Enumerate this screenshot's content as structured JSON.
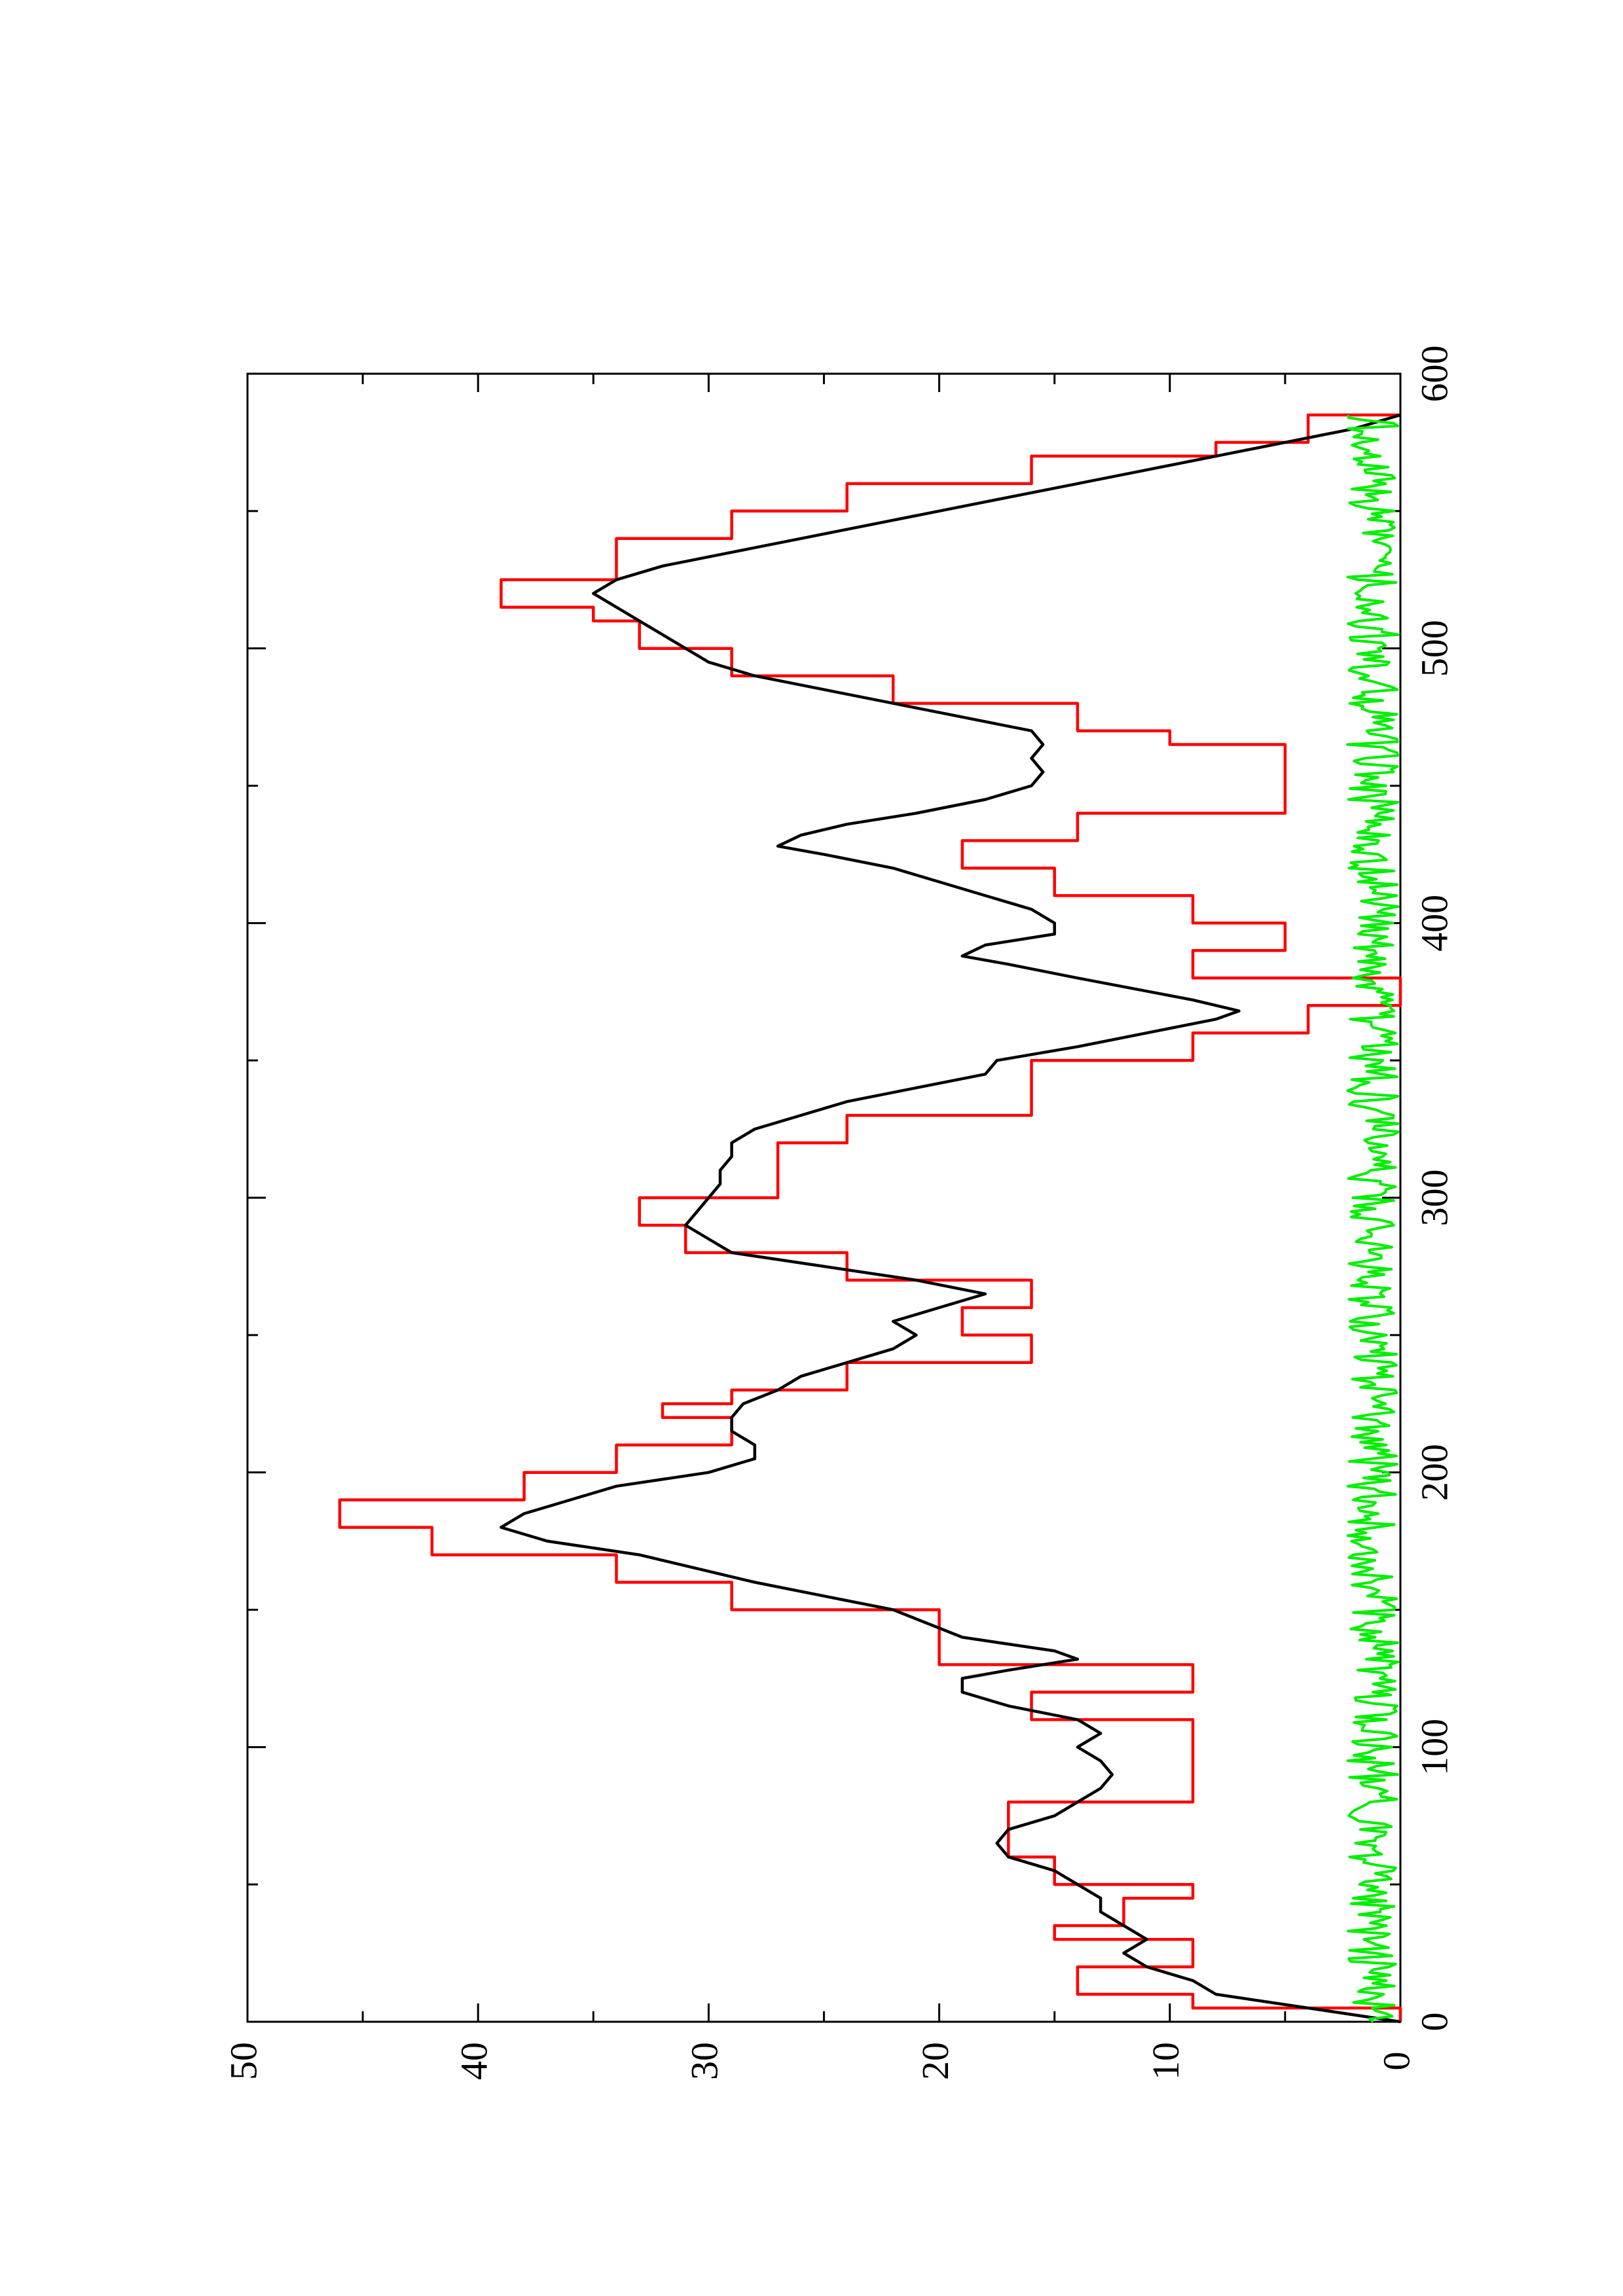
{
  "chart_data": {
    "type": "line",
    "orientation": "rotated-90-ccw",
    "xlim": [
      0,
      600
    ],
    "ylim": [
      0,
      50
    ],
    "x_ticks": [
      0,
      100,
      200,
      300,
      400,
      500,
      600
    ],
    "y_ticks": [
      0,
      10,
      20,
      30,
      40,
      50
    ],
    "title": "",
    "xlabel": "",
    "ylabel": "",
    "grid": false,
    "series": [
      {
        "color": "#ff0000",
        "style": "step",
        "points": [
          [
            0,
            0
          ],
          [
            5,
            0
          ],
          [
            5,
            9
          ],
          [
            10,
            9
          ],
          [
            10,
            14
          ],
          [
            20,
            14
          ],
          [
            20,
            9
          ],
          [
            30,
            9
          ],
          [
            30,
            15
          ],
          [
            35,
            15
          ],
          [
            35,
            12
          ],
          [
            45,
            12
          ],
          [
            45,
            9
          ],
          [
            50,
            9
          ],
          [
            50,
            15
          ],
          [
            60,
            15
          ],
          [
            60,
            17
          ],
          [
            80,
            17
          ],
          [
            80,
            9
          ],
          [
            110,
            9
          ],
          [
            110,
            16
          ],
          [
            120,
            16
          ],
          [
            120,
            9
          ],
          [
            130,
            9
          ],
          [
            130,
            20
          ],
          [
            150,
            20
          ],
          [
            150,
            29
          ],
          [
            160,
            29
          ],
          [
            160,
            34
          ],
          [
            170,
            34
          ],
          [
            170,
            42
          ],
          [
            180,
            42
          ],
          [
            180,
            46
          ],
          [
            190,
            46
          ],
          [
            190,
            38
          ],
          [
            200,
            38
          ],
          [
            200,
            34
          ],
          [
            210,
            34
          ],
          [
            210,
            29
          ],
          [
            220,
            29
          ],
          [
            220,
            32
          ],
          [
            225,
            32
          ],
          [
            225,
            29
          ],
          [
            230,
            29
          ],
          [
            230,
            24
          ],
          [
            240,
            24
          ],
          [
            240,
            16
          ],
          [
            250,
            16
          ],
          [
            250,
            19
          ],
          [
            260,
            19
          ],
          [
            260,
            16
          ],
          [
            270,
            16
          ],
          [
            270,
            24
          ],
          [
            280,
            24
          ],
          [
            280,
            31
          ],
          [
            290,
            31
          ],
          [
            290,
            33
          ],
          [
            300,
            33
          ],
          [
            300,
            27
          ],
          [
            320,
            27
          ],
          [
            320,
            24
          ],
          [
            330,
            24
          ],
          [
            330,
            16
          ],
          [
            350,
            16
          ],
          [
            350,
            9
          ],
          [
            360,
            9
          ],
          [
            360,
            4
          ],
          [
            370,
            4
          ],
          [
            370,
            0
          ],
          [
            380,
            0
          ],
          [
            380,
            9
          ],
          [
            390,
            9
          ],
          [
            390,
            5
          ],
          [
            400,
            5
          ],
          [
            400,
            9
          ],
          [
            410,
            9
          ],
          [
            410,
            15
          ],
          [
            420,
            15
          ],
          [
            420,
            19
          ],
          [
            430,
            19
          ],
          [
            430,
            14
          ],
          [
            440,
            14
          ],
          [
            440,
            5
          ],
          [
            465,
            5
          ],
          [
            465,
            10
          ],
          [
            470,
            10
          ],
          [
            470,
            14
          ],
          [
            480,
            14
          ],
          [
            480,
            22
          ],
          [
            490,
            22
          ],
          [
            490,
            29
          ],
          [
            500,
            29
          ],
          [
            500,
            33
          ],
          [
            510,
            33
          ],
          [
            510,
            35
          ],
          [
            515,
            35
          ],
          [
            515,
            39
          ],
          [
            525,
            39
          ],
          [
            525,
            34
          ],
          [
            540,
            34
          ],
          [
            540,
            29
          ],
          [
            550,
            29
          ],
          [
            550,
            24
          ],
          [
            560,
            24
          ],
          [
            560,
            16
          ],
          [
            570,
            16
          ],
          [
            570,
            8
          ],
          [
            575,
            8
          ],
          [
            575,
            4
          ],
          [
            585,
            4
          ],
          [
            585,
            0
          ]
        ]
      },
      {
        "color": "#000000",
        "style": "line",
        "points": [
          [
            0,
            0
          ],
          [
            5,
            4
          ],
          [
            10,
            8
          ],
          [
            15,
            9
          ],
          [
            20,
            11
          ],
          [
            25,
            12
          ],
          [
            30,
            11
          ],
          [
            35,
            12
          ],
          [
            40,
            13
          ],
          [
            45,
            13
          ],
          [
            50,
            14
          ],
          [
            55,
            15
          ],
          [
            60,
            17
          ],
          [
            65,
            17.5
          ],
          [
            70,
            17
          ],
          [
            75,
            15
          ],
          [
            80,
            14
          ],
          [
            85,
            13
          ],
          [
            90,
            12.5
          ],
          [
            95,
            13
          ],
          [
            100,
            14
          ],
          [
            105,
            13
          ],
          [
            110,
            14
          ],
          [
            115,
            17
          ],
          [
            120,
            19
          ],
          [
            125,
            19
          ],
          [
            128,
            17
          ],
          [
            132,
            14
          ],
          [
            135,
            15
          ],
          [
            140,
            19
          ],
          [
            150,
            22
          ],
          [
            160,
            28
          ],
          [
            170,
            33
          ],
          [
            175,
            37
          ],
          [
            180,
            39
          ],
          [
            185,
            38
          ],
          [
            190,
            36
          ],
          [
            195,
            34
          ],
          [
            200,
            30
          ],
          [
            205,
            28
          ],
          [
            210,
            28
          ],
          [
            215,
            29
          ],
          [
            220,
            29
          ],
          [
            225,
            28.5
          ],
          [
            230,
            27
          ],
          [
            235,
            26
          ],
          [
            240,
            24
          ],
          [
            245,
            22
          ],
          [
            250,
            21
          ],
          [
            255,
            22
          ],
          [
            260,
            20
          ],
          [
            265,
            18
          ],
          [
            270,
            21
          ],
          [
            275,
            25
          ],
          [
            280,
            29
          ],
          [
            285,
            30
          ],
          [
            290,
            31
          ],
          [
            295,
            30.5
          ],
          [
            300,
            30
          ],
          [
            305,
            29.5
          ],
          [
            310,
            29.5
          ],
          [
            315,
            29
          ],
          [
            320,
            29
          ],
          [
            325,
            28
          ],
          [
            330,
            26
          ],
          [
            335,
            24
          ],
          [
            340,
            21
          ],
          [
            345,
            18
          ],
          [
            350,
            17.5
          ],
          [
            355,
            14
          ],
          [
            360,
            11
          ],
          [
            365,
            8
          ],
          [
            368,
            7
          ],
          [
            372,
            9
          ],
          [
            380,
            14
          ],
          [
            385,
            17
          ],
          [
            388,
            19
          ],
          [
            392,
            18
          ],
          [
            396,
            15
          ],
          [
            400,
            15
          ],
          [
            405,
            16
          ],
          [
            410,
            18
          ],
          [
            415,
            20
          ],
          [
            420,
            22
          ],
          [
            425,
            25
          ],
          [
            428,
            27
          ],
          [
            432,
            26
          ],
          [
            436,
            24
          ],
          [
            440,
            21
          ],
          [
            445,
            18
          ],
          [
            450,
            16
          ],
          [
            455,
            15.5
          ],
          [
            460,
            16
          ],
          [
            465,
            15.5
          ],
          [
            470,
            16
          ],
          [
            475,
            19
          ],
          [
            480,
            22
          ],
          [
            485,
            25
          ],
          [
            490,
            28
          ],
          [
            495,
            30
          ],
          [
            500,
            31
          ],
          [
            505,
            32
          ],
          [
            510,
            33
          ],
          [
            515,
            34
          ],
          [
            520,
            35
          ],
          [
            525,
            34
          ],
          [
            530,
            32
          ],
          [
            535,
            29
          ],
          [
            540,
            26
          ],
          [
            545,
            23
          ],
          [
            550,
            20
          ],
          [
            555,
            17
          ],
          [
            560,
            14
          ],
          [
            565,
            11
          ],
          [
            570,
            8
          ],
          [
            575,
            5
          ],
          [
            580,
            2
          ],
          [
            585,
            0
          ]
        ]
      },
      {
        "color": "#00ee00",
        "style": "noise",
        "x_range": [
          0,
          585
        ],
        "amplitude_range": [
          0,
          3.5
        ],
        "mean": 1.2
      }
    ]
  }
}
